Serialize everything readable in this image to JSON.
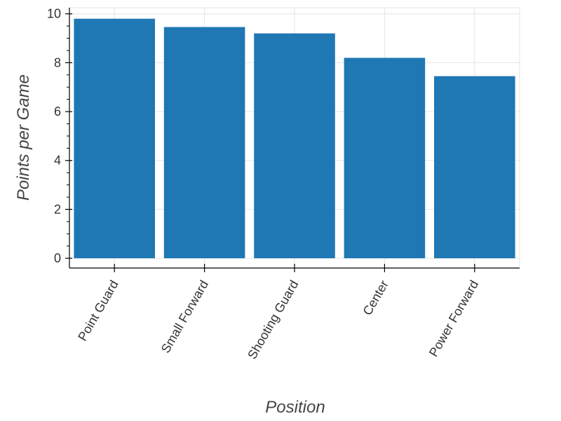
{
  "chart_data": {
    "type": "bar",
    "categories": [
      "Point Guard",
      "Small Forward",
      "Shooting Guard",
      "Center",
      "Power Forward"
    ],
    "values": [
      9.8,
      9.46,
      9.2,
      8.2,
      7.45
    ],
    "xlabel": "Position",
    "ylabel": "Points per Game",
    "ylim": [
      -0.4,
      10.25
    ],
    "yticks": [
      0,
      2,
      4,
      6,
      8,
      10
    ],
    "grid": true,
    "bar_color": "#1f77b4"
  }
}
